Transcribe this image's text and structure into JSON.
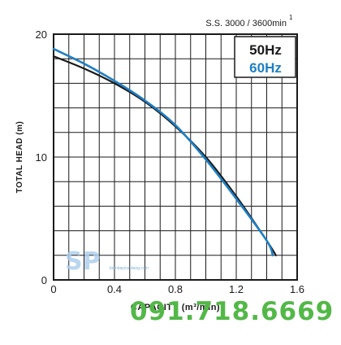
{
  "chart_data": {
    "type": "line",
    "speed_label": "S.S. 3000 / 3600min",
    "speed_sup": "1",
    "xlabel": "CAPACITY (m³/min)",
    "ylabel": "TOTAL HEAD (m)",
    "xlim": [
      0,
      1.6
    ],
    "ylim": [
      0,
      20
    ],
    "xticks": [
      "0",
      "0.4",
      "0.8",
      "1.2",
      "1.6"
    ],
    "yticks": [
      "0",
      "10",
      "20"
    ],
    "grid": true,
    "legend": "top-right",
    "series": [
      {
        "name": "50Hz",
        "color": "#1a1a1a",
        "x": [
          0,
          0.2,
          0.4,
          0.6,
          0.8,
          1.0,
          1.2,
          1.4,
          1.46
        ],
        "y": [
          18.2,
          17.2,
          16.0,
          14.5,
          12.5,
          10.0,
          6.8,
          3.2,
          2.0
        ]
      },
      {
        "name": "60Hz",
        "color": "#1f7fc4",
        "x": [
          0,
          0.2,
          0.4,
          0.6,
          0.8,
          1.0,
          1.2,
          1.4,
          1.44
        ],
        "y": [
          18.8,
          17.6,
          16.2,
          14.6,
          12.6,
          9.8,
          6.6,
          3.2,
          2.0
        ]
      }
    ]
  },
  "watermark": {
    "logo": "SP",
    "site": "bombaycondung.com",
    "phone": "091.718.6669"
  }
}
